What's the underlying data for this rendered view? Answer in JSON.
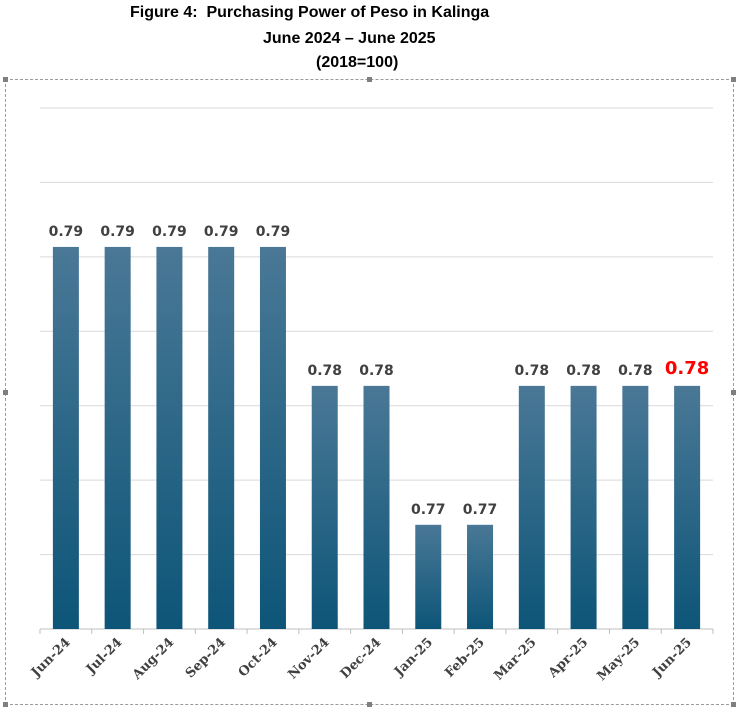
{
  "chart_data": {
    "type": "bar",
    "title": "Figure 4:  Purchasing Power of Peso in Kalinga",
    "subtitle": "June 2024 – June 2025",
    "base_note": "(2018=100)",
    "categories": [
      "Jun-24",
      "Jul-24",
      "Aug-24",
      "Sep-24",
      "Oct-24",
      "Nov-24",
      "Dec-24",
      "Jan-25",
      "Feb-25",
      "Mar-25",
      "Apr-25",
      "May-25",
      "Jun-25"
    ],
    "values": [
      0.79,
      0.79,
      0.79,
      0.79,
      0.79,
      0.78,
      0.78,
      0.77,
      0.77,
      0.78,
      0.78,
      0.78,
      0.78
    ],
    "data_labels": [
      "0.79",
      "0.79",
      "0.79",
      "0.79",
      "0.79",
      "0.78",
      "0.78",
      "0.77",
      "0.77",
      "0.78",
      "0.78",
      "0.78",
      "0.78"
    ],
    "highlight_index": 12,
    "ylim": [
      0.7625,
      0.8
    ],
    "y_gridlines": 7,
    "grid": true,
    "legend": "none",
    "colors": {
      "bar_top": "#4a7896",
      "bar_bottom": "#0d5578",
      "label": "#404040",
      "highlight_label": "#ff0000",
      "gridline": "#d9d9d9",
      "axis": "#bfbfbf"
    }
  }
}
